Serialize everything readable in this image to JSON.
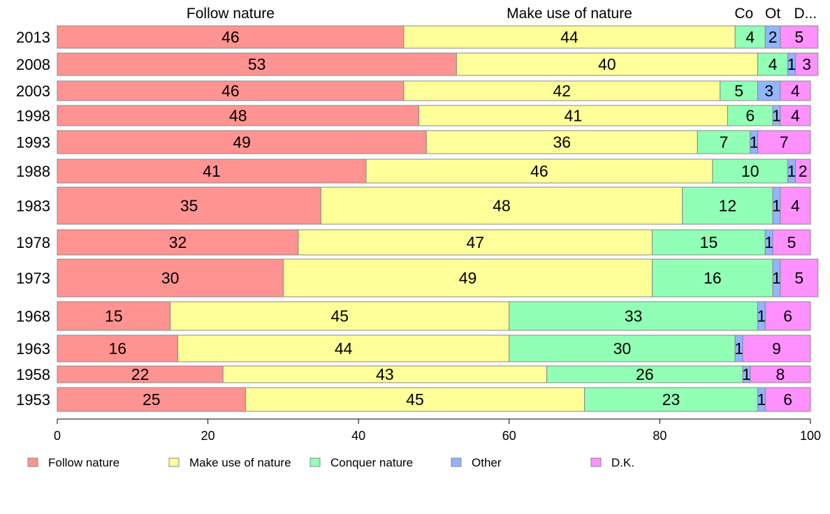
{
  "chart_data": {
    "type": "bar",
    "orientation": "horizontal",
    "stacked": true,
    "column_headers": [
      "Follow nature",
      "Make use of nature",
      "Co",
      "Ot",
      "D..."
    ],
    "categories": [
      "2013",
      "2008",
      "2003",
      "1998",
      "1993",
      "1988",
      "1983",
      "1978",
      "1973",
      "1968",
      "1963",
      "1958",
      "1953"
    ],
    "series": [
      {
        "name": "Follow nature",
        "color": "#FF9391",
        "values": [
          46,
          53,
          46,
          48,
          49,
          41,
          35,
          32,
          30,
          15,
          16,
          22,
          25
        ]
      },
      {
        "name": "Make use of nature",
        "color": "#FFFF99",
        "values": [
          44,
          40,
          42,
          41,
          36,
          46,
          48,
          47,
          49,
          45,
          44,
          43,
          45
        ]
      },
      {
        "name": "Conquer nature",
        "color": "#91FFB5",
        "values": [
          4,
          4,
          5,
          6,
          7,
          10,
          12,
          15,
          16,
          33,
          30,
          26,
          23
        ]
      },
      {
        "name": "Other",
        "color": "#91B5FF",
        "values": [
          2,
          1,
          3,
          1,
          1,
          1,
          1,
          1,
          1,
          1,
          1,
          1,
          1
        ]
      },
      {
        "name": "D.K.",
        "color": "#FF91FF",
        "values": [
          5,
          3,
          4,
          4,
          7,
          2,
          4,
          5,
          5,
          6,
          9,
          8,
          6
        ]
      }
    ],
    "xlim": [
      0,
      100
    ],
    "xticks": [
      "0",
      "20",
      "40",
      "60",
      "80",
      "100"
    ],
    "legend_position": "bottom",
    "grid": false
  }
}
